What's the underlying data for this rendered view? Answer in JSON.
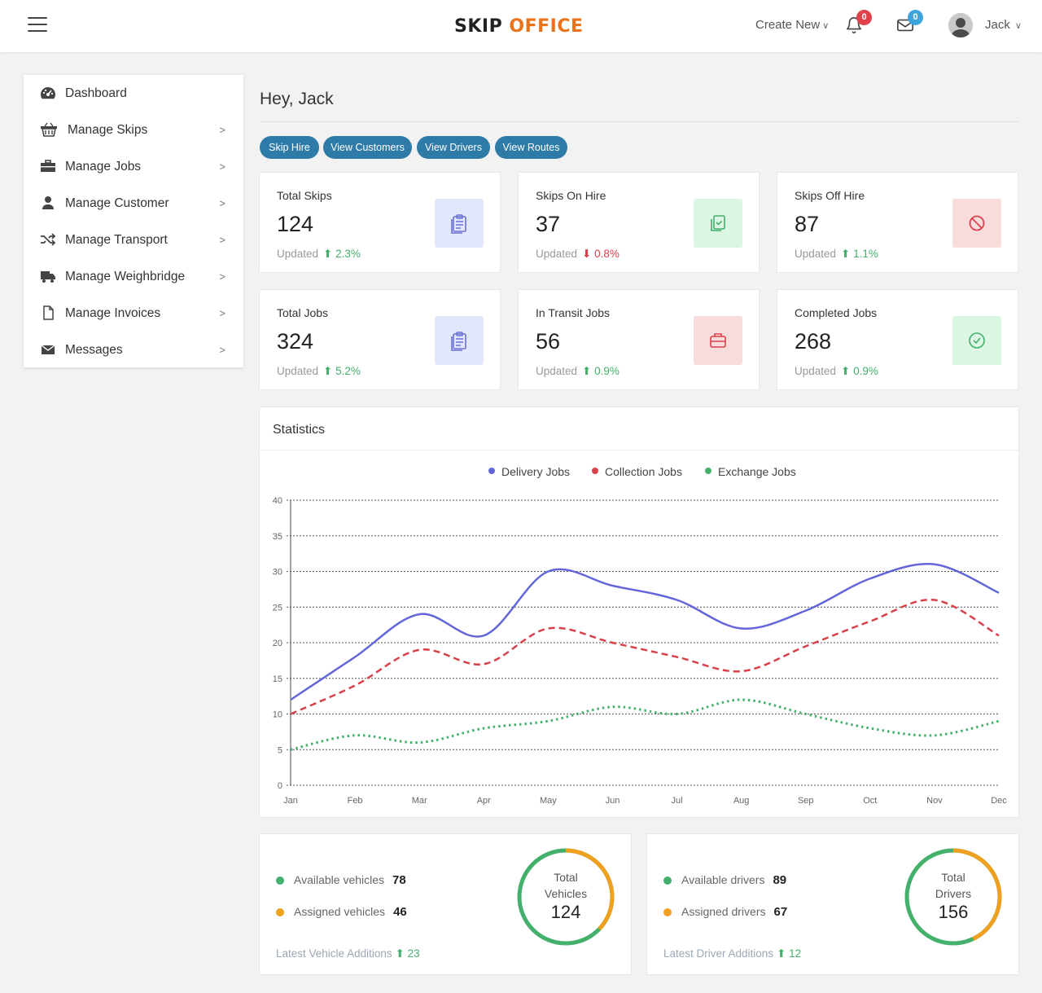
{
  "header": {
    "logo_part1": "SKIP",
    "logo_part2": "OFFICE",
    "create_new": "Create New",
    "notifications_count": "0",
    "messages_count": "0",
    "user_name": "Jack"
  },
  "sidebar": {
    "items": [
      {
        "label": "Dashboard",
        "icon": "dashboard-icon"
      },
      {
        "label": "Manage Skips",
        "icon": "basket-icon"
      },
      {
        "label": "Manage Jobs",
        "icon": "briefcase-icon"
      },
      {
        "label": "Manage Customer",
        "icon": "user-icon"
      },
      {
        "label": "Manage Transport",
        "icon": "shuffle-icon"
      },
      {
        "label": "Manage Weighbridge",
        "icon": "truck-icon"
      },
      {
        "label": "Manage Invoices",
        "icon": "file-icon"
      },
      {
        "label": "Messages",
        "icon": "envelope-icon"
      }
    ]
  },
  "main": {
    "greeting": "Hey, Jack",
    "buttons": [
      "Skip Hire",
      "View Customers",
      "View Drivers",
      "View Routes"
    ],
    "cards": [
      {
        "title": "Total Skips",
        "value": "124",
        "updated": "Updated",
        "change": "2.3%",
        "trend": "up",
        "icon": "clipboard-icon",
        "icon_bg": "#e3e7fb",
        "icon_color": "#6b72d6"
      },
      {
        "title": "Skips On Hire",
        "value": "37",
        "updated": "Updated",
        "change": "0.8%",
        "trend": "down",
        "icon": "copy-icon",
        "icon_bg": "#dcf6e4",
        "icon_color": "#43b06c"
      },
      {
        "title": "Skips Off Hire",
        "value": "87",
        "updated": "Updated",
        "change": "1.1%",
        "trend": "up",
        "icon": "ban-icon",
        "icon_bg": "#f8dcdc",
        "icon_color": "#d9414a"
      },
      {
        "title": "Total Jobs",
        "value": "324",
        "updated": "Updated",
        "change": "5.2%",
        "trend": "up",
        "icon": "clipboard-icon",
        "icon_bg": "#e3e7fb",
        "icon_color": "#6b72d6"
      },
      {
        "title": "In Transit Jobs",
        "value": "56",
        "updated": "Updated",
        "change": "0.9%",
        "trend": "up",
        "icon": "briefcase-icon",
        "icon_bg": "#f8dcdc",
        "icon_color": "#d9414a"
      },
      {
        "title": "Completed Jobs",
        "value": "268",
        "updated": "Updated",
        "change": "0.9%",
        "trend": "up",
        "icon": "check-circle-icon",
        "icon_bg": "#dcf6e4",
        "icon_color": "#43b06c"
      }
    ]
  },
  "statistics": {
    "title": "Statistics"
  },
  "chart_data": {
    "type": "line",
    "categories": [
      "Jan",
      "Feb",
      "Mar",
      "Apr",
      "May",
      "Jun",
      "Jul",
      "Aug",
      "Sep",
      "Oct",
      "Nov",
      "Dec"
    ],
    "series": [
      {
        "name": "Delivery Jobs",
        "values": [
          12,
          18,
          24,
          21,
          30,
          28,
          26,
          22,
          24.5,
          29,
          31,
          27
        ],
        "color": "#6366d8",
        "style": "solid"
      },
      {
        "name": "Collection Jobs",
        "values": [
          10,
          14,
          19,
          17,
          22,
          20,
          18,
          16,
          19.5,
          23,
          26,
          21
        ],
        "color": "#d9414a",
        "style": "dashed"
      },
      {
        "name": "Exchange Jobs",
        "values": [
          5,
          7,
          6,
          8,
          9,
          11,
          10,
          12,
          10,
          8,
          7,
          9
        ],
        "color": "#43b06c",
        "style": "dotted"
      }
    ],
    "yticks": [
      0,
      5,
      10,
      15,
      20,
      25,
      30,
      35,
      40
    ],
    "ylim": [
      0,
      40
    ],
    "grid": true,
    "legend": "top-center"
  },
  "vehicles": {
    "available_label": "Available vehicles",
    "available_value": "78",
    "assigned_label": "Assigned vehicles",
    "assigned_value": "46",
    "latest_label": "Latest Vehicle Additions",
    "latest_value": "23",
    "ring_line1": "Total",
    "ring_line2": "Vehicles",
    "ring_total": "124"
  },
  "drivers": {
    "available_label": "Available drivers",
    "available_value": "89",
    "assigned_label": "Assigned drivers",
    "assigned_value": "67",
    "latest_label": "Latest Driver Additions",
    "latest_value": "12",
    "ring_line1": "Total",
    "ring_line2": "Drivers",
    "ring_total": "156"
  },
  "colors": {
    "primary_button": "#2f7ba8",
    "available_dot": "#43b06c",
    "assigned_dot": "#f0a020"
  }
}
